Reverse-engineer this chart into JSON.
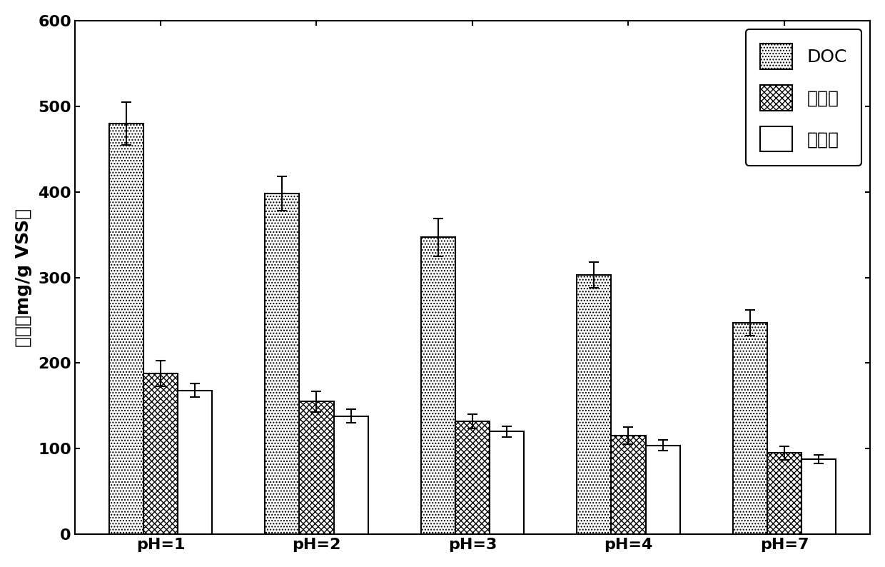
{
  "categories": [
    "pH=1",
    "pH=2",
    "pH=3",
    "pH=4",
    "pH=7"
  ],
  "DOC": [
    480,
    398,
    347,
    303,
    247
  ],
  "protein": [
    188,
    155,
    132,
    115,
    95
  ],
  "humic_acid": [
    168,
    138,
    120,
    104,
    88
  ],
  "DOC_err": [
    25,
    20,
    22,
    15,
    15
  ],
  "protein_err": [
    15,
    12,
    8,
    10,
    8
  ],
  "humic_acid_err": [
    8,
    8,
    6,
    6,
    5
  ],
  "ylabel": "浓度（mg/g VSS）",
  "ylim": [
    0,
    600
  ],
  "yticks": [
    0,
    100,
    200,
    300,
    400,
    500,
    600
  ],
  "legend_labels": [
    "DOC",
    "蛋白质",
    "腐殖酸"
  ],
  "bar_width": 0.22,
  "figure_bg": "#ffffff",
  "bar_edge_color": "#000000",
  "font_size": 18,
  "tick_font_size": 16,
  "legend_font_size": 18
}
